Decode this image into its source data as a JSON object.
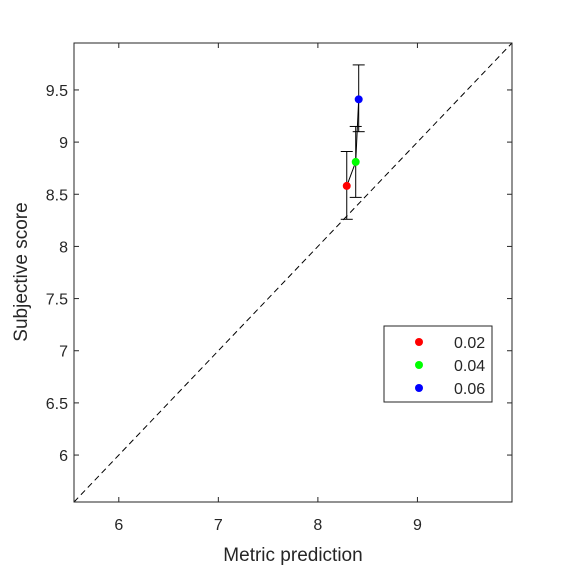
{
  "chart_data": {
    "type": "scatter",
    "xlabel": "Metric prediction",
    "ylabel": "Subjective score",
    "xlim": [
      5.55,
      9.95
    ],
    "ylim": [
      5.55,
      9.95
    ],
    "xticks": [
      6,
      7,
      8,
      9
    ],
    "yticks": [
      6,
      6.5,
      7,
      7.5,
      8,
      8.5,
      9,
      9.5
    ],
    "xtick_labels": [
      "6",
      "7",
      "8",
      "9"
    ],
    "ytick_labels": [
      "6",
      "6.5",
      "7",
      "7.5",
      "8",
      "8.5",
      "9",
      "9.5"
    ],
    "grid": false,
    "identity_line": true,
    "legend_position": "lower-right",
    "series": [
      {
        "name": "0.02",
        "color": "#ff0000",
        "x": 8.29,
        "y": 8.58,
        "err_low": 8.26,
        "err_high": 8.91
      },
      {
        "name": "0.04",
        "color": "#00ff00",
        "x": 8.38,
        "y": 8.81,
        "err_low": 8.47,
        "err_high": 9.15
      },
      {
        "name": "0.06",
        "color": "#0000ff",
        "x": 8.41,
        "y": 9.41,
        "err_low": 9.1,
        "err_high": 9.74
      }
    ]
  }
}
